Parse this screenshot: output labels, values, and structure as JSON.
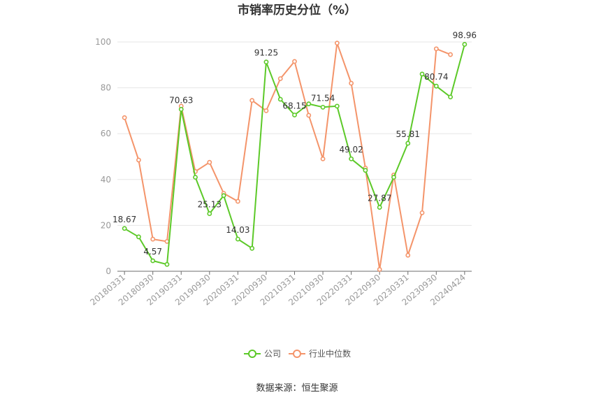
{
  "chart_data": {
    "type": "line",
    "title": "市销率历史分位（%）",
    "x": [
      "20180331",
      "20180630",
      "20180930",
      "20181231",
      "20190331",
      "20190630",
      "20190930",
      "20191231",
      "20200331",
      "20200630",
      "20200930",
      "20201231",
      "20210331",
      "20210630",
      "20210930",
      "20211231",
      "20220331",
      "20220630",
      "20220930",
      "20221231",
      "20230331",
      "20230630",
      "20230930",
      "20231231",
      "20240424"
    ],
    "x_tick_labels": [
      "20180331",
      "20180930",
      "20190331",
      "20190930",
      "20200331",
      "20200930",
      "20210331",
      "20210930",
      "20220331",
      "20220930",
      "20230331",
      "20230930",
      "20240424"
    ],
    "y_ticks": [
      "0",
      "20",
      "40",
      "60",
      "80",
      "100"
    ],
    "ylim": [
      0,
      100
    ],
    "grid": "horizontal",
    "legend_position": "bottom",
    "series": [
      {
        "name": "公司",
        "color": "#5cc928",
        "values": [
          18.67,
          15,
          4.57,
          3,
          70.63,
          41,
          25.13,
          33,
          14.03,
          10,
          91.25,
          75,
          68.15,
          73,
          71.54,
          72,
          49.02,
          44,
          27.87,
          41,
          55.81,
          86,
          80.74,
          76,
          98.96
        ]
      },
      {
        "name": "行业中位数",
        "color": "#f4946a",
        "values": [
          67,
          48.5,
          14,
          13,
          72,
          43.5,
          47.5,
          34,
          30.5,
          74.5,
          70,
          84,
          91.5,
          68,
          49,
          99.5,
          82,
          45,
          0.8,
          42,
          7,
          25.5,
          97,
          94.5,
          null
        ]
      }
    ],
    "data_labels": [
      {
        "series": 0,
        "index": 0,
        "text": "18.67"
      },
      {
        "series": 0,
        "index": 2,
        "text": "4.57"
      },
      {
        "series": 0,
        "index": 4,
        "text": "70.63"
      },
      {
        "series": 0,
        "index": 6,
        "text": "25.13"
      },
      {
        "series": 0,
        "index": 8,
        "text": "14.03"
      },
      {
        "series": 0,
        "index": 10,
        "text": "91.25"
      },
      {
        "series": 0,
        "index": 12,
        "text": "68.15"
      },
      {
        "series": 0,
        "index": 14,
        "text": "71.54"
      },
      {
        "series": 0,
        "index": 16,
        "text": "49.02"
      },
      {
        "series": 0,
        "index": 18,
        "text": "27.87"
      },
      {
        "series": 0,
        "index": 20,
        "text": "55.81"
      },
      {
        "series": 0,
        "index": 22,
        "text": "80.74"
      },
      {
        "series": 0,
        "index": 24,
        "text": "98.96"
      }
    ]
  },
  "legend": {
    "items": [
      {
        "label": "公司",
        "color": "#5cc928"
      },
      {
        "label": "行业中位数",
        "color": "#f4946a"
      }
    ]
  },
  "footer": {
    "source": "数据来源：恒生聚源"
  }
}
